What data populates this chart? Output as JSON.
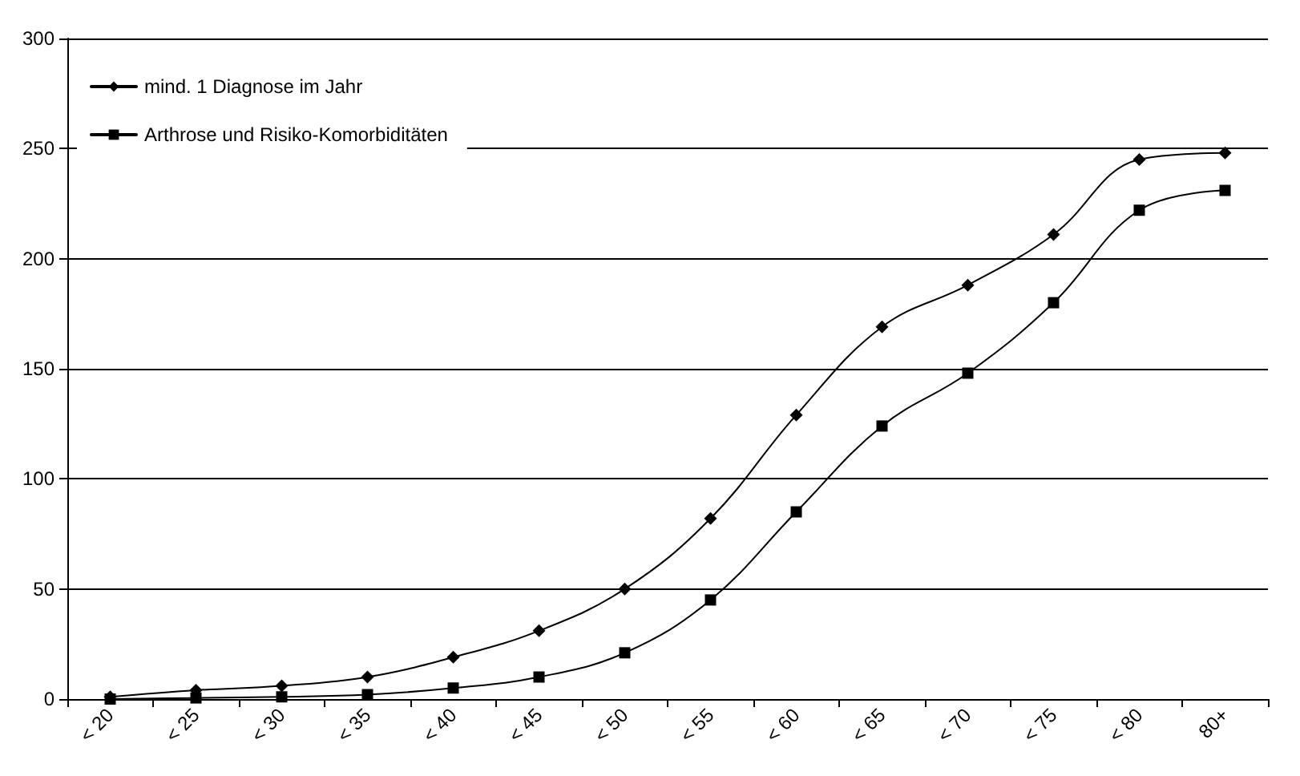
{
  "chart_data": {
    "type": "line",
    "categories": [
      "< 20",
      "< 25",
      "< 30",
      "< 35",
      "< 40",
      "< 45",
      "< 50",
      "< 55",
      "< 60",
      "< 65",
      "< 70",
      "< 75",
      "< 80",
      "80+"
    ],
    "series": [
      {
        "name": "mind. 1 Diagnose im Jahr",
        "color": "#000000",
        "marker": "diamond",
        "values": [
          1,
          4,
          6,
          10,
          19,
          31,
          50,
          82,
          129,
          169,
          188,
          211,
          245,
          248
        ]
      },
      {
        "name": "Arthrose und Risiko-Komorbiditäten",
        "color": "#000000",
        "marker": "square",
        "values": [
          0,
          0.5,
          1,
          2,
          5,
          10,
          21,
          45,
          85,
          124,
          148,
          180,
          222,
          231
        ]
      }
    ],
    "ylim": [
      0,
      300
    ],
    "yticks": [
      0,
      50,
      100,
      150,
      200,
      250,
      300
    ],
    "grid": "y",
    "legend": "top left",
    "line_style": "solid"
  }
}
